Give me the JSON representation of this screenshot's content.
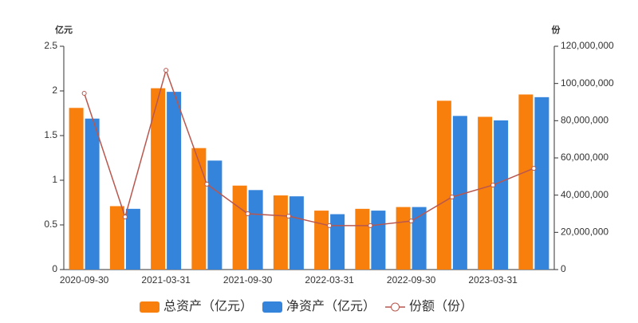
{
  "chart_data": {
    "type": "bar-line",
    "y_label": "亿元",
    "y2_label": "份",
    "categories": [
      "2020-09-30",
      null,
      "2021-03-31",
      null,
      "2021-09-30",
      null,
      "2022-03-31",
      null,
      "2022-09-30",
      null,
      "2023-03-31",
      null
    ],
    "series": [
      {
        "name": "总资产（亿元）",
        "type": "bar",
        "color": "#f97f0c",
        "values": [
          1.81,
          0.71,
          2.03,
          1.36,
          0.94,
          0.83,
          0.66,
          0.68,
          0.7,
          1.89,
          1.71,
          1.96
        ]
      },
      {
        "name": "净资产（亿元）",
        "type": "bar",
        "color": "#3484dc",
        "values": [
          1.69,
          0.68,
          1.99,
          1.22,
          0.89,
          0.82,
          0.62,
          0.66,
          0.7,
          1.72,
          1.67,
          1.93
        ]
      },
      {
        "name": "份额（份）",
        "type": "line",
        "axis": "y2",
        "color": "#b9574e",
        "values": [
          94700000,
          28300000,
          107100000,
          45900000,
          30000000,
          28700000,
          23600000,
          23600000,
          26100000,
          39000000,
          45400000,
          54400000
        ]
      }
    ],
    "ylim": [
      0,
      2.5
    ],
    "yticks": [
      0,
      0.5,
      1,
      1.5,
      2,
      2.5
    ],
    "y2lim": [
      0,
      120000000
    ],
    "y2ticks": [
      0,
      {
        "value": 20000000,
        "label": "20,000,000"
      },
      {
        "value": 40000000,
        "label": "40,000,000"
      },
      {
        "value": 60000000,
        "label": "60,000,000"
      },
      {
        "value": 80000000,
        "label": "80,000,000"
      },
      {
        "value": 100000000,
        "label": "100,000,000"
      },
      {
        "value": 120000000,
        "label": "120,000,000"
      }
    ]
  }
}
